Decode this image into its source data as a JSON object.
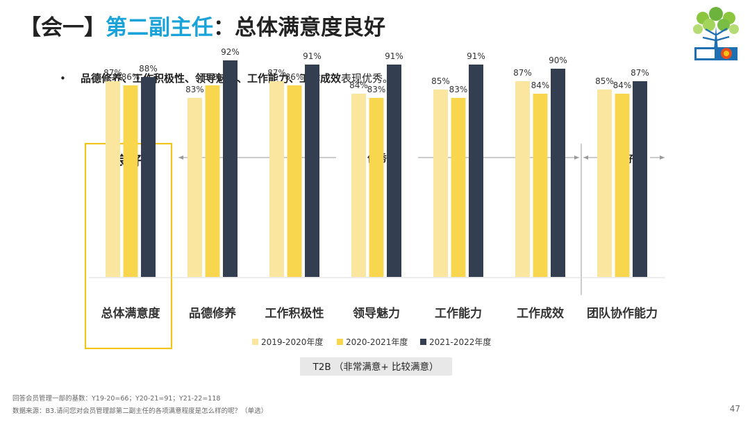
{
  "title": {
    "bracket": "【会一】",
    "highlight": "第二副主任",
    "rest": "：总体满意度良好"
  },
  "bullet": {
    "bold": "品德修养、工作积极性、领导魅力、工作能力、工作成效",
    "rest": "表现优秀。"
  },
  "colors": {
    "title_accent": "#1aa3d8",
    "highlight_box": "#f2c318",
    "series": [
      "#fbe6a0",
      "#f8d64e",
      "#333f50"
    ]
  },
  "chart_data": {
    "type": "bar",
    "categories": [
      "总体满意度",
      "品德修养",
      "工作积极性",
      "领导魅力",
      "工作能力",
      "工作成效",
      "团队协作能力"
    ],
    "series": [
      {
        "name": "2019-2020年度",
        "values": [
          87,
          83,
          87,
          84,
          85,
          87,
          85
        ]
      },
      {
        "name": "2020-2021年度",
        "values": [
          86,
          86,
          86,
          83,
          83,
          84,
          84
        ]
      },
      {
        "name": "2021-2022年度",
        "values": [
          88,
          92,
          91,
          91,
          91,
          90,
          87
        ]
      }
    ],
    "value_suffix": "%",
    "group_labels": {
      "first": "良好",
      "middle": "优秀",
      "last": "良好"
    },
    "xlabel": "T2B （非常满意+ 比较满意）",
    "legend_position": "bottom"
  },
  "notes": {
    "base": "回答会员管理一部的基数：Y19-20=66；Y20-21=91；Y21-22=118",
    "source": "数据来源：B3.请问您对会员管理部第二副主任的各项满意程度是怎么样的呢？（单选）"
  },
  "page_number": "47"
}
